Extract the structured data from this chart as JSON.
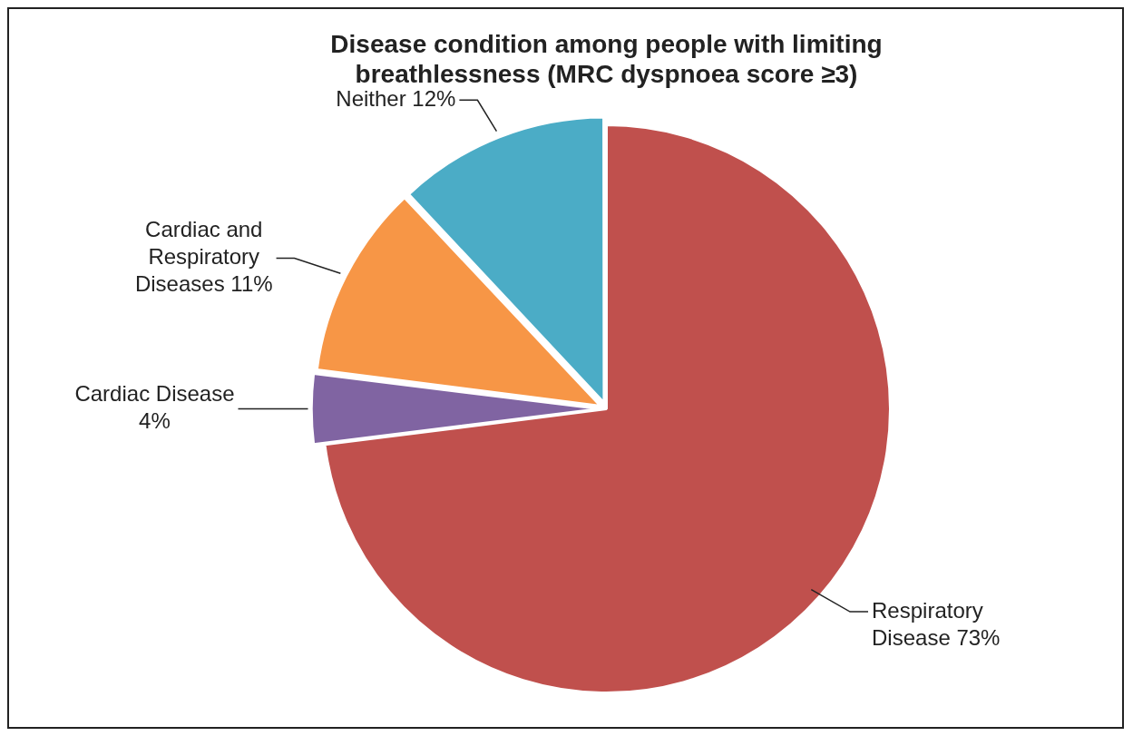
{
  "chart_data": {
    "type": "pie",
    "title": "Disease condition among people with limiting breathlessness (MRC dyspnoea score ≥3)",
    "categories": [
      "Respiratory Disease",
      "Cardiac Disease",
      "Cardiac and Respiratory Diseases",
      "Neither"
    ],
    "values": [
      73,
      4,
      11,
      12
    ],
    "colors": [
      "#c0504d",
      "#8064a2",
      "#f79646",
      "#4bacc6"
    ],
    "value_labels": [
      "73%",
      "4%",
      "11%",
      "12%"
    ],
    "legend": false
  }
}
